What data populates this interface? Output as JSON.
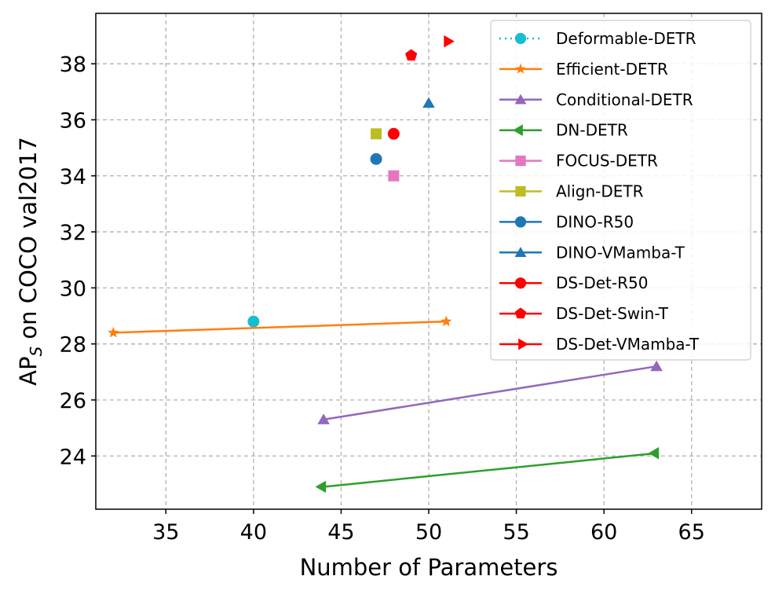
{
  "chart_data": {
    "type": "scatter",
    "title": "",
    "xlabel": "Number of Parameters",
    "ylabel_main": "AP",
    "ylabel_sub": "S",
    "ylabel_rest": " on COCO val2017",
    "xlim": [
      31,
      69
    ],
    "ylim": [
      22.1,
      39.8
    ],
    "xticks": [
      35,
      40,
      45,
      50,
      55,
      60,
      65
    ],
    "yticks": [
      24,
      26,
      28,
      30,
      32,
      34,
      36,
      38
    ],
    "xtick_labels": [
      "35",
      "40",
      "45",
      "50",
      "55",
      "60",
      "65"
    ],
    "ytick_labels": [
      "24",
      "26",
      "28",
      "30",
      "32",
      "34",
      "36",
      "38"
    ],
    "grid": true,
    "legend_position": "top-right",
    "series": [
      {
        "name": "Deformable-DETR",
        "color": "#17becf",
        "marker": "circle",
        "line": "dotted",
        "x": [
          40
        ],
        "y": [
          28.8
        ]
      },
      {
        "name": "Efficient-DETR",
        "color": "#ff7f0e",
        "marker": "star",
        "line": "solid",
        "x": [
          32,
          51
        ],
        "y": [
          28.4,
          28.8
        ]
      },
      {
        "name": "Conditional-DETR",
        "color": "#9467bd",
        "marker": "triangle-up",
        "line": "solid",
        "x": [
          44,
          63
        ],
        "y": [
          25.3,
          27.2
        ]
      },
      {
        "name": "DN-DETR",
        "color": "#2ca02c",
        "marker": "triangle-left",
        "line": "solid",
        "x": [
          44,
          63
        ],
        "y": [
          22.9,
          24.1
        ]
      },
      {
        "name": "FOCUS-DETR",
        "color": "#e377c2",
        "marker": "square",
        "line": "solid",
        "x": [
          48
        ],
        "y": [
          34.0
        ]
      },
      {
        "name": "Align-DETR",
        "color": "#bcbd22",
        "marker": "square",
        "line": "solid",
        "x": [
          47
        ],
        "y": [
          35.5
        ]
      },
      {
        "name": "DINO-R50",
        "color": "#1f77b4",
        "marker": "circle",
        "line": "solid",
        "x": [
          47
        ],
        "y": [
          34.6
        ]
      },
      {
        "name": "DINO-VMamba-T",
        "color": "#1f77b4",
        "marker": "triangle-up",
        "line": "solid",
        "x": [
          50
        ],
        "y": [
          36.6
        ]
      },
      {
        "name": "DS-Det-R50",
        "color": "#ff0000",
        "marker": "circle",
        "line": "solid",
        "x": [
          48
        ],
        "y": [
          35.5
        ]
      },
      {
        "name": "DS-Det-Swin-T",
        "color": "#ff0000",
        "marker": "pentagon",
        "line": "solid",
        "x": [
          49
        ],
        "y": [
          38.3
        ]
      },
      {
        "name": "DS-Det-VMamba-T",
        "color": "#ff0000",
        "marker": "triangle-right",
        "line": "solid",
        "x": [
          51
        ],
        "y": [
          38.8
        ]
      }
    ]
  }
}
